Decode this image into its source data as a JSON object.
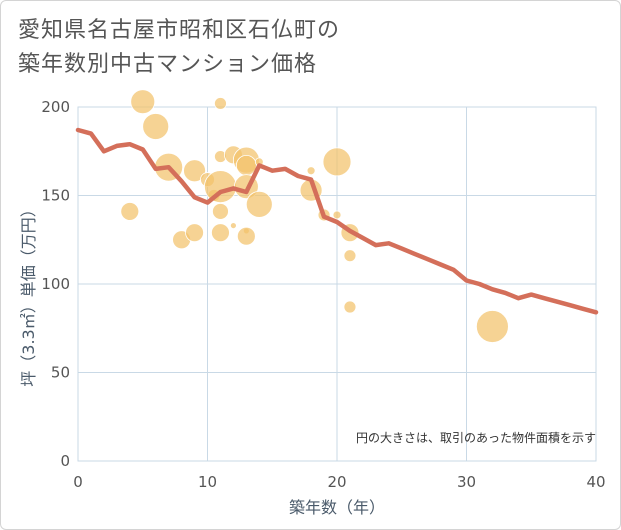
{
  "chart_data": {
    "type": "scatter",
    "title_lines": [
      "愛知県名古屋市昭和区石仏町の",
      "築年数別中古マンション価格"
    ],
    "xlabel": "築年数（年）",
    "ylabel": "坪（3.3㎡）単価（万円）",
    "xlim": [
      0,
      40
    ],
    "ylim": [
      0,
      200
    ],
    "x_ticks": [
      "0",
      "10",
      "20",
      "30",
      "40"
    ],
    "y_ticks": [
      "0",
      "50",
      "100",
      "150",
      "200"
    ],
    "grid": true,
    "note": "円の大きさは、取引のあった物件面積を示す",
    "colors": {
      "bubble": "#f2c26b",
      "line": "#d46f5a",
      "grid": "#c9d9e6"
    },
    "bubbles": [
      {
        "x": 4,
        "y": 141,
        "r": 9
      },
      {
        "x": 5,
        "y": 203,
        "r": 12
      },
      {
        "x": 6,
        "y": 189,
        "r": 13
      },
      {
        "x": 7,
        "y": 166,
        "r": 14
      },
      {
        "x": 8,
        "y": 125,
        "r": 9
      },
      {
        "x": 9,
        "y": 164,
        "r": 11
      },
      {
        "x": 9,
        "y": 129,
        "r": 9
      },
      {
        "x": 10,
        "y": 159,
        "r": 7
      },
      {
        "x": 10.5,
        "y": 150,
        "r": 6
      },
      {
        "x": 11,
        "y": 202,
        "r": 6
      },
      {
        "x": 11,
        "y": 172,
        "r": 6
      },
      {
        "x": 11,
        "y": 155,
        "r": 16
      },
      {
        "x": 11,
        "y": 141,
        "r": 8
      },
      {
        "x": 11,
        "y": 129,
        "r": 9
      },
      {
        "x": 12,
        "y": 173,
        "r": 9
      },
      {
        "x": 12,
        "y": 133,
        "r": 3
      },
      {
        "x": 13,
        "y": 170,
        "r": 13
      },
      {
        "x": 13,
        "y": 167,
        "r": 10
      },
      {
        "x": 13,
        "y": 155,
        "r": 12
      },
      {
        "x": 13,
        "y": 130,
        "r": 3
      },
      {
        "x": 13,
        "y": 127,
        "r": 9
      },
      {
        "x": 14,
        "y": 169,
        "r": 4
      },
      {
        "x": 14,
        "y": 145,
        "r": 13
      },
      {
        "x": 18,
        "y": 164,
        "r": 4
      },
      {
        "x": 18,
        "y": 153,
        "r": 11
      },
      {
        "x": 19,
        "y": 139,
        "r": 6
      },
      {
        "x": 20,
        "y": 169,
        "r": 14
      },
      {
        "x": 20,
        "y": 139,
        "r": 4
      },
      {
        "x": 21,
        "y": 129,
        "r": 9
      },
      {
        "x": 21,
        "y": 116,
        "r": 6
      },
      {
        "x": 21,
        "y": 87,
        "r": 6
      },
      {
        "x": 32,
        "y": 76,
        "r": 16
      }
    ],
    "line": {
      "x": [
        0,
        1,
        2,
        3,
        4,
        5,
        6,
        7,
        8,
        9,
        10,
        11,
        12,
        13,
        14,
        15,
        16,
        17,
        18,
        19,
        20,
        21,
        22,
        23,
        24,
        25,
        26,
        27,
        28,
        29,
        30,
        31,
        32,
        33,
        34,
        35,
        36,
        37,
        38,
        39,
        40
      ],
      "y": [
        187,
        185,
        175,
        178,
        179,
        176,
        165,
        166,
        158,
        149,
        146,
        152,
        154,
        152,
        167,
        164,
        165,
        161,
        159,
        138,
        135,
        130,
        126,
        122,
        123,
        120,
        117,
        114,
        111,
        108,
        102,
        100,
        97,
        95,
        92,
        94,
        92,
        90,
        88,
        86,
        84
      ]
    }
  }
}
